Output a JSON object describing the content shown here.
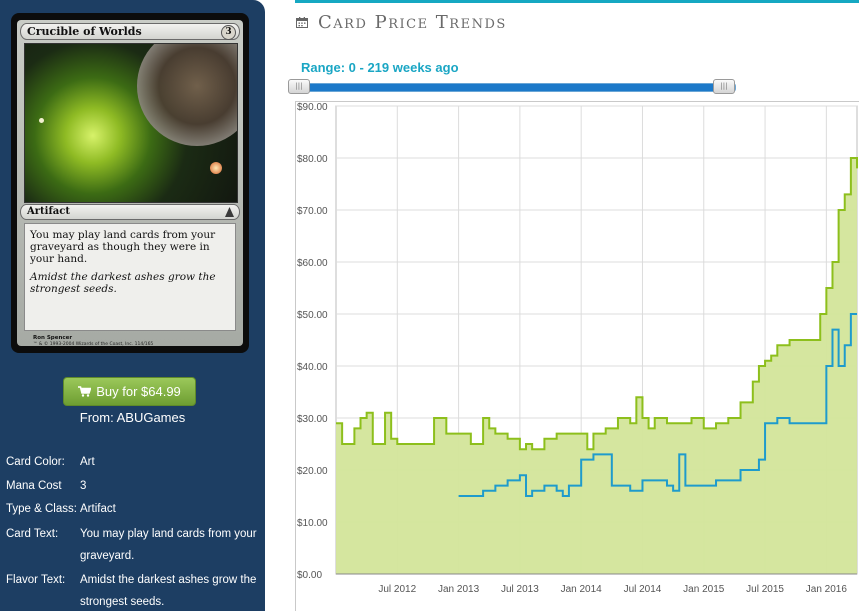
{
  "card": {
    "name": "Crucible of Worlds",
    "mana": "3",
    "type_line": "Artifact",
    "rules_text": "You may play land cards from your graveyard as though they were in your hand.",
    "flavor_text": "Amidst the darkest ashes grow the strongest seeds.",
    "artist": "Ron Spencer",
    "copyright": "™ & © 1993-2004 Wizards of the Coast, Inc. 114/165"
  },
  "buy": {
    "label": "Buy for $64.99",
    "from": "From: ABUGames"
  },
  "attributes": [
    {
      "label": "Card Color:",
      "value": "Art"
    },
    {
      "label": "Mana Cost",
      "value": "3"
    },
    {
      "label": "Type & Class:",
      "value": "Artifact"
    },
    {
      "label": "Card Text:",
      "value": "You may play land cards from your graveyard."
    },
    {
      "label": "Flavor Text:",
      "value": "Amidst the darkest ashes grow the strongest seeds."
    }
  ],
  "trends": {
    "title": "Card Price Trends",
    "range_label": "Range: 0 - 219 weeks ago",
    "range_min": 0,
    "range_max": 219
  },
  "colors": {
    "sidebar": "#1d3e63",
    "buy_button": "#7fae40",
    "accent": "#16a8c2",
    "series_green": "#8dbf1c",
    "series_fill": "#d3e59a",
    "series_blue": "#1e9bcc"
  },
  "chart_data": {
    "type": "area",
    "ylim": [
      0,
      90
    ],
    "y_ticks": [
      "$0.00",
      "$10.00",
      "$20.00",
      "$30.00",
      "$40.00",
      "$50.00",
      "$60.00",
      "$70.00",
      "$80.00",
      "$90.00"
    ],
    "x_ticks": [
      "Jul 2012",
      "Jan 2013",
      "Jul 2013",
      "Jan 2014",
      "Jul 2014",
      "Jan 2015",
      "Jul 2015",
      "Jan 2016"
    ],
    "x_tick_positions": [
      2012.5,
      2013.0,
      2013.5,
      2014.0,
      2014.5,
      2015.0,
      2015.5,
      2016.0
    ],
    "xlim": [
      2012.0,
      2016.25
    ],
    "grid": true,
    "series": [
      {
        "x": [
          2012.0,
          2012.05,
          2012.1,
          2012.15,
          2012.2,
          2012.25,
          2012.3,
          2012.35,
          2012.4,
          2012.45,
          2012.5,
          2012.55,
          2012.6,
          2012.7,
          2012.8,
          2012.9,
          2013.0,
          2013.05,
          2013.1,
          2013.2,
          2013.25,
          2013.3,
          2013.4,
          2013.5,
          2013.55,
          2013.6,
          2013.7,
          2013.8,
          2013.9,
          2014.0,
          2014.05,
          2014.1,
          2014.2,
          2014.3,
          2014.4,
          2014.45,
          2014.5,
          2014.55,
          2014.6,
          2014.7,
          2014.8,
          2014.9,
          2015.0,
          2015.1,
          2015.2,
          2015.3,
          2015.4,
          2015.45,
          2015.5,
          2015.55,
          2015.6,
          2015.7,
          2015.8,
          2015.9,
          2015.95,
          2016.0,
          2016.05,
          2016.1,
          2016.15,
          2016.2,
          2016.25
        ],
        "values": [
          29,
          25,
          25,
          28,
          30,
          31,
          25,
          25,
          31,
          26,
          25,
          25,
          25,
          25,
          30,
          27,
          27,
          27,
          25,
          30,
          28,
          27,
          26,
          24,
          25,
          24,
          26,
          27,
          27,
          27,
          24,
          27,
          28,
          30,
          29,
          34,
          30,
          28,
          30,
          29,
          29,
          30,
          28,
          29,
          30,
          33,
          37,
          40,
          41,
          42,
          44,
          45,
          45,
          45,
          50,
          55,
          60,
          70,
          73,
          80,
          78
        ]
      },
      {
        "x": [
          2013.0,
          2013.1,
          2013.2,
          2013.3,
          2013.4,
          2013.5,
          2013.55,
          2013.6,
          2013.7,
          2013.8,
          2013.85,
          2013.9,
          2014.0,
          2014.1,
          2014.2,
          2014.25,
          2014.3,
          2014.4,
          2014.5,
          2014.55,
          2014.6,
          2014.7,
          2014.75,
          2014.8,
          2014.85,
          2014.9,
          2015.0,
          2015.1,
          2015.2,
          2015.3,
          2015.4,
          2015.45,
          2015.5,
          2015.6,
          2015.7,
          2015.8,
          2015.9,
          2016.0,
          2016.05,
          2016.1,
          2016.15,
          2016.2,
          2016.25
        ],
        "values": [
          15,
          15,
          16,
          17,
          18,
          19,
          15,
          16,
          17,
          16,
          15,
          17,
          22,
          23,
          23,
          17,
          17,
          16,
          18,
          18,
          18,
          17,
          16,
          23,
          17,
          17,
          17,
          18,
          18,
          20,
          20,
          22,
          29,
          30,
          29,
          29,
          29,
          40,
          47,
          40,
          44,
          50,
          50
        ]
      }
    ]
  }
}
